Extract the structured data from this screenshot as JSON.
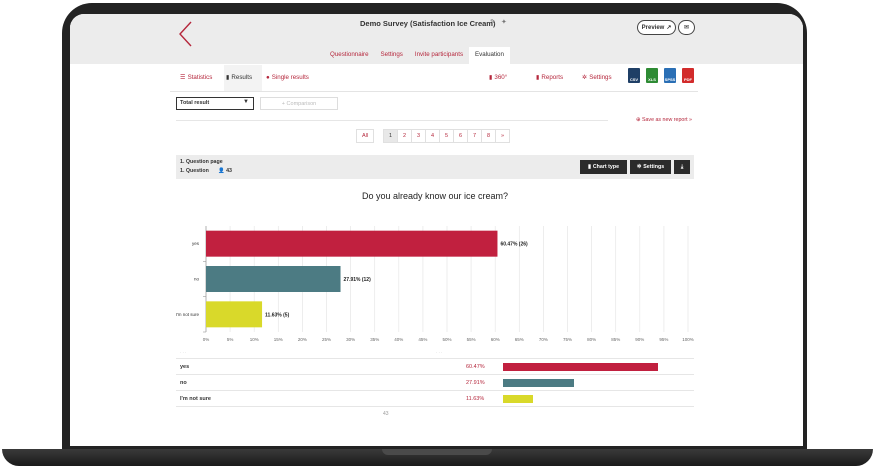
{
  "header": {
    "survey_title": "Demo Survey (Satisfaction Ice Cream)",
    "preview_label": "Preview",
    "tabs": [
      "Questionnaire",
      "Settings",
      "Invite participants",
      "Evaluation"
    ],
    "active_tab": "Evaluation"
  },
  "subnav": {
    "statistics": "Statistics",
    "results": "Results",
    "single_results": "Single results",
    "view360": "360°",
    "reports": "Reports",
    "settings": "Settings",
    "exports": [
      "CSV",
      "XLS",
      "SPSS",
      "PDF"
    ]
  },
  "filters": {
    "total_result": "Total result",
    "comparison": "+ Comparison",
    "save_report": "Save as new report »"
  },
  "pager": {
    "all": "All",
    "pages": [
      "1",
      "2",
      "3",
      "4",
      "5",
      "6",
      "7",
      "8",
      "»"
    ],
    "current": "1"
  },
  "question": {
    "page_label": "1. Question page",
    "question_label": "1. Question",
    "respondents": "43",
    "chart_type_label": "Chart type",
    "settings_label": "Settings"
  },
  "chart_data": {
    "type": "bar",
    "orientation": "horizontal",
    "title": "Do you already know our ice cream?",
    "categories": [
      "yes",
      "no",
      "I'm not sure"
    ],
    "values": [
      60.47,
      27.91,
      11.63
    ],
    "counts": [
      26,
      12,
      5
    ],
    "data_labels": [
      "60.47% (26)",
      "27.91% (12)",
      "11.63% (5)"
    ],
    "colors": [
      "#c1203f",
      "#4c7b83",
      "#d9d92a"
    ],
    "xlim": [
      0,
      100
    ],
    "xticks": [
      "0%",
      "5%",
      "10%",
      "15%",
      "20%",
      "25%",
      "30%",
      "35%",
      "40%",
      "45%",
      "50%",
      "55%",
      "60%",
      "65%",
      "70%",
      "75%",
      "80%",
      "85%",
      "90%",
      "95%",
      "100%"
    ],
    "grid": true
  },
  "table": {
    "rows": [
      {
        "label": "yes",
        "pct": "60.47%",
        "count": "26"
      },
      {
        "label": "no",
        "pct": "27.91%",
        "count": "12"
      },
      {
        "label": "I'm not sure",
        "pct": "11.63%",
        "count": "5"
      }
    ],
    "total": "43"
  },
  "colors": {
    "accent": "#b5273c",
    "bezel": "#232323"
  }
}
